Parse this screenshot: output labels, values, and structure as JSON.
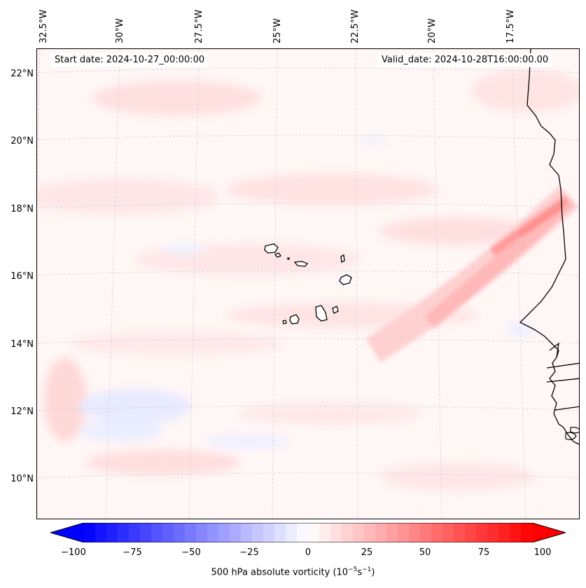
{
  "map": {
    "start_date": "Start date: 2024-10-27_00:00:00",
    "valid_date": "Valid_date: 2024-10-28T16:00:00.00",
    "longitude_labels": [
      "32.5°W",
      "30°W",
      "27.5°W",
      "25°W",
      "22.5°W",
      "20°W",
      "17.5°W"
    ],
    "latitude_labels": [
      "22°N",
      "20°N",
      "18°N",
      "16°N",
      "14°N",
      "12°N",
      "10°N"
    ],
    "field": "500 hPa absolute vorticity",
    "colormap": "bwr",
    "colors": {
      "negative": "#0000ff",
      "neutral": "#ffffff",
      "positive": "#ff0000",
      "coastline": "#000000"
    }
  },
  "colorbar": {
    "ticks": [
      "−100",
      "−75",
      "−50",
      "−25",
      "0",
      "25",
      "50",
      "75",
      "100"
    ],
    "label_prefix": "500 hPa absolute vorticity (10",
    "label_exp1": "−5",
    "label_mid": "s",
    "label_exp2": "−1",
    "label_suffix": ")"
  }
}
